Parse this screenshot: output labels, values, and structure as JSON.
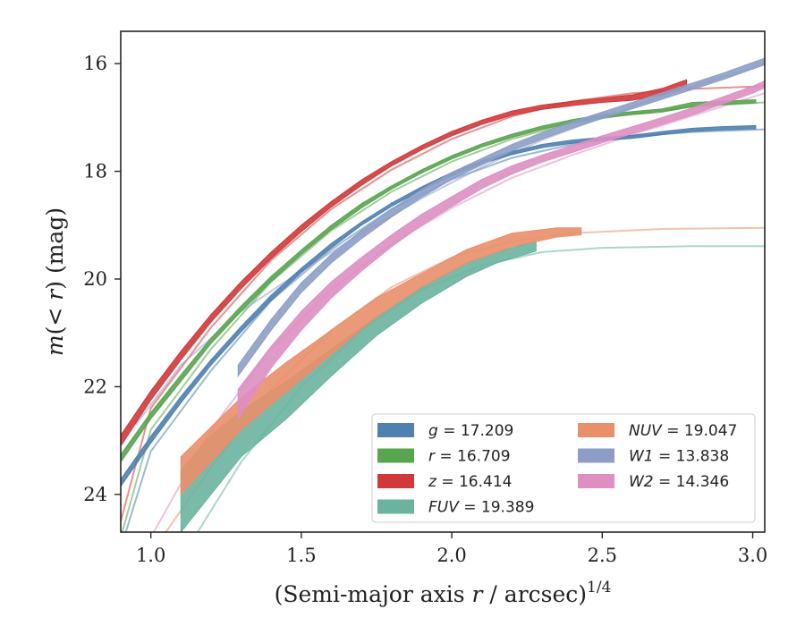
{
  "chart_data": {
    "type": "line",
    "title": "",
    "xlabel": "(Semi-major axis r / arcsec)",
    "xlabel_exponent": "1/4",
    "ylabel": "m(< r) (mag)",
    "xlim": [
      0.9,
      3.04
    ],
    "ylim": [
      24.7,
      15.4
    ],
    "y_inverted": true,
    "xticks": [
      1.0,
      1.5,
      2.0,
      2.5,
      3.0
    ],
    "xtick_labels": [
      "1.0",
      "1.5",
      "2.0",
      "2.5",
      "3.0"
    ],
    "yticks": [
      16,
      18,
      20,
      22,
      24
    ],
    "ytick_labels": [
      "16",
      "18",
      "20",
      "22",
      "24"
    ],
    "grid": false,
    "legend_position": "lower-right",
    "series": [
      {
        "name": "g = 17.209",
        "label_var": "g",
        "label_value": "17.209",
        "color": "#4f80b0",
        "band": [
          [
            0.9,
            23.85,
            23.72
          ],
          [
            1.0,
            23.05,
            22.92
          ],
          [
            1.1,
            22.3,
            22.18
          ],
          [
            1.2,
            21.6,
            21.5
          ],
          [
            1.3,
            20.98,
            20.88
          ],
          [
            1.4,
            20.4,
            20.3
          ],
          [
            1.5,
            19.88,
            19.8
          ],
          [
            1.6,
            19.42,
            19.34
          ],
          [
            1.7,
            19.0,
            18.94
          ],
          [
            1.8,
            18.65,
            18.59
          ],
          [
            1.9,
            18.35,
            18.29
          ],
          [
            2.0,
            18.08,
            18.02
          ],
          [
            2.1,
            17.86,
            17.8
          ],
          [
            2.2,
            17.69,
            17.63
          ],
          [
            2.3,
            17.56,
            17.5
          ],
          [
            2.4,
            17.48,
            17.42
          ],
          [
            2.5,
            17.43,
            17.37
          ],
          [
            2.6,
            17.39,
            17.33
          ],
          [
            2.7,
            17.32,
            17.26
          ],
          [
            2.8,
            17.26,
            17.2
          ],
          [
            2.9,
            17.23,
            17.17
          ],
          [
            3.01,
            17.21,
            17.15
          ]
        ],
        "model": [
          [
            0.9,
            25.0
          ],
          [
            1.0,
            23.2
          ],
          [
            1.2,
            21.7
          ],
          [
            1.4,
            20.4
          ],
          [
            1.6,
            19.45
          ],
          [
            1.8,
            18.7
          ],
          [
            2.0,
            18.15
          ],
          [
            2.2,
            17.75
          ],
          [
            2.4,
            17.5
          ],
          [
            2.6,
            17.35
          ],
          [
            2.8,
            17.27
          ],
          [
            3.04,
            17.22
          ]
        ]
      },
      {
        "name": "r = 16.709",
        "label_var": "r",
        "label_value": "16.709",
        "color": "#59a44f",
        "band": [
          [
            0.9,
            23.4,
            23.26
          ],
          [
            1.0,
            22.6,
            22.48
          ],
          [
            1.1,
            21.9,
            21.78
          ],
          [
            1.2,
            21.2,
            21.1
          ],
          [
            1.3,
            20.6,
            20.5
          ],
          [
            1.4,
            20.05,
            19.95
          ],
          [
            1.5,
            19.54,
            19.46
          ],
          [
            1.6,
            19.08,
            19.0
          ],
          [
            1.7,
            18.68,
            18.6
          ],
          [
            1.8,
            18.33,
            18.27
          ],
          [
            1.9,
            18.03,
            17.97
          ],
          [
            2.0,
            17.77,
            17.71
          ],
          [
            2.1,
            17.55,
            17.49
          ],
          [
            2.2,
            17.37,
            17.31
          ],
          [
            2.3,
            17.22,
            17.16
          ],
          [
            2.4,
            17.1,
            17.04
          ],
          [
            2.5,
            17.01,
            16.95
          ],
          [
            2.6,
            16.95,
            16.89
          ],
          [
            2.7,
            16.9,
            16.84
          ],
          [
            2.8,
            16.8,
            16.72
          ],
          [
            2.9,
            16.76,
            16.7
          ],
          [
            3.01,
            16.73,
            16.67
          ]
        ],
        "model": [
          [
            0.9,
            24.8
          ],
          [
            1.0,
            22.8
          ],
          [
            1.2,
            21.3
          ],
          [
            1.4,
            20.05
          ],
          [
            1.6,
            19.1
          ],
          [
            1.8,
            18.38
          ],
          [
            2.0,
            17.82
          ],
          [
            2.2,
            17.4
          ],
          [
            2.4,
            17.1
          ],
          [
            2.6,
            16.93
          ],
          [
            2.8,
            16.8
          ],
          [
            3.04,
            16.72
          ]
        ]
      },
      {
        "name": "z = 16.414",
        "label_var": "z",
        "label_value": "16.414",
        "color": "#d0383a",
        "band": [
          [
            0.9,
            23.1,
            22.9
          ],
          [
            1.0,
            22.25,
            22.08
          ],
          [
            1.1,
            21.5,
            21.34
          ],
          [
            1.2,
            20.8,
            20.66
          ],
          [
            1.3,
            20.18,
            20.05
          ],
          [
            1.4,
            19.62,
            19.5
          ],
          [
            1.5,
            19.12,
            19.0
          ],
          [
            1.6,
            18.66,
            18.56
          ],
          [
            1.7,
            18.26,
            18.16
          ],
          [
            1.8,
            17.9,
            17.82
          ],
          [
            1.9,
            17.6,
            17.52
          ],
          [
            2.0,
            17.34,
            17.26
          ],
          [
            2.1,
            17.13,
            17.05
          ],
          [
            2.2,
            16.96,
            16.88
          ],
          [
            2.3,
            16.85,
            16.77
          ],
          [
            2.4,
            16.78,
            16.7
          ],
          [
            2.5,
            16.72,
            16.64
          ],
          [
            2.6,
            16.68,
            16.58
          ],
          [
            2.7,
            16.58,
            16.46
          ],
          [
            2.78,
            16.42,
            16.3
          ]
        ],
        "model": [
          [
            0.9,
            24.5
          ],
          [
            1.0,
            22.4
          ],
          [
            1.2,
            20.9
          ],
          [
            1.4,
            19.65
          ],
          [
            1.6,
            18.7
          ],
          [
            1.8,
            17.97
          ],
          [
            2.0,
            17.4
          ],
          [
            2.2,
            16.98
          ],
          [
            2.4,
            16.7
          ],
          [
            2.6,
            16.55
          ],
          [
            2.8,
            16.47
          ],
          [
            3.04,
            16.42
          ]
        ]
      },
      {
        "name": "FUV = 19.389",
        "label_var": "FUV",
        "label_value": "19.389",
        "color": "#6bb39f",
        "band": [
          [
            1.1,
            24.7,
            23.55
          ],
          [
            1.2,
            24.0,
            22.9
          ],
          [
            1.3,
            23.3,
            22.45
          ],
          [
            1.45,
            22.6,
            21.9
          ],
          [
            1.6,
            21.8,
            21.3
          ],
          [
            1.75,
            21.05,
            20.7
          ],
          [
            1.9,
            20.45,
            20.15
          ],
          [
            2.05,
            19.95,
            19.7
          ],
          [
            2.15,
            19.7,
            19.5
          ],
          [
            2.28,
            19.48,
            19.3
          ]
        ],
        "model": [
          [
            1.1,
            25.2
          ],
          [
            1.3,
            23.4
          ],
          [
            1.5,
            22.0
          ],
          [
            1.7,
            20.95
          ],
          [
            1.9,
            20.2
          ],
          [
            2.1,
            19.75
          ],
          [
            2.3,
            19.5
          ],
          [
            2.5,
            19.42
          ],
          [
            2.8,
            19.39
          ],
          [
            3.04,
            19.39
          ]
        ]
      },
      {
        "name": "NUV = 19.047",
        "label_var": "NUV",
        "label_value": "19.047",
        "color": "#e98f6a",
        "band": [
          [
            1.1,
            24.0,
            23.3
          ],
          [
            1.2,
            23.4,
            22.75
          ],
          [
            1.3,
            22.8,
            22.2
          ],
          [
            1.45,
            22.1,
            21.55
          ],
          [
            1.6,
            21.4,
            20.95
          ],
          [
            1.75,
            20.7,
            20.35
          ],
          [
            1.9,
            20.15,
            19.9
          ],
          [
            2.05,
            19.7,
            19.45
          ],
          [
            2.2,
            19.4,
            19.15
          ],
          [
            2.35,
            19.22,
            19.05
          ],
          [
            2.43,
            19.18,
            19.05
          ]
        ],
        "model": [
          [
            1.0,
            25.1
          ],
          [
            1.2,
            23.5
          ],
          [
            1.4,
            22.05
          ],
          [
            1.6,
            20.95
          ],
          [
            1.8,
            20.15
          ],
          [
            2.0,
            19.6
          ],
          [
            2.2,
            19.3
          ],
          [
            2.4,
            19.15
          ],
          [
            2.7,
            19.07
          ],
          [
            3.04,
            19.05
          ]
        ]
      },
      {
        "name": "W1 = 13.838",
        "label_var": "W1",
        "label_value": "13.838",
        "color": "#8d9ec6",
        "band": [
          [
            1.29,
            21.8,
            21.6
          ],
          [
            1.4,
            20.95,
            20.75
          ],
          [
            1.5,
            20.25,
            20.07
          ],
          [
            1.6,
            19.7,
            19.54
          ],
          [
            1.7,
            19.25,
            19.1
          ],
          [
            1.8,
            18.85,
            18.7
          ],
          [
            1.9,
            18.48,
            18.34
          ],
          [
            2.0,
            18.15,
            18.02
          ],
          [
            2.1,
            17.88,
            17.76
          ],
          [
            2.2,
            17.62,
            17.5
          ],
          [
            2.3,
            17.4,
            17.28
          ],
          [
            2.4,
            17.2,
            17.08
          ],
          [
            2.5,
            17.02,
            16.9
          ],
          [
            2.6,
            16.84,
            16.72
          ],
          [
            2.7,
            16.66,
            16.54
          ],
          [
            2.8,
            16.48,
            16.36
          ],
          [
            2.9,
            16.3,
            16.18
          ],
          [
            3.0,
            16.1,
            15.98
          ],
          [
            3.04,
            16.02,
            15.9
          ]
        ],
        "model": [
          [
            0.95,
            22.7
          ],
          [
            1.1,
            21.6
          ],
          [
            1.3,
            20.6
          ],
          [
            1.5,
            19.85
          ],
          [
            1.7,
            19.15
          ],
          [
            1.9,
            18.5
          ],
          [
            2.1,
            17.92
          ],
          [
            2.3,
            17.42
          ],
          [
            2.5,
            17.0
          ],
          [
            2.7,
            16.6
          ],
          [
            2.9,
            16.25
          ],
          [
            3.04,
            16.0
          ]
        ]
      },
      {
        "name": "W2 = 14.346",
        "label_var": "W2",
        "label_value": "14.346",
        "color": "#dd8fc2",
        "band": [
          [
            1.29,
            22.6,
            22.05
          ],
          [
            1.4,
            21.65,
            21.25
          ],
          [
            1.5,
            20.95,
            20.6
          ],
          [
            1.6,
            20.35,
            20.05
          ],
          [
            1.7,
            19.85,
            19.6
          ],
          [
            1.8,
            19.4,
            19.18
          ],
          [
            1.9,
            19.0,
            18.8
          ],
          [
            2.0,
            18.65,
            18.47
          ],
          [
            2.1,
            18.32,
            18.15
          ],
          [
            2.2,
            18.05,
            17.9
          ],
          [
            2.3,
            17.83,
            17.7
          ],
          [
            2.4,
            17.65,
            17.52
          ],
          [
            2.5,
            17.47,
            17.34
          ],
          [
            2.6,
            17.3,
            17.17
          ],
          [
            2.7,
            17.13,
            17.0
          ],
          [
            2.8,
            16.95,
            16.82
          ],
          [
            2.9,
            16.75,
            16.62
          ],
          [
            3.0,
            16.55,
            16.42
          ],
          [
            3.04,
            16.45,
            16.32
          ]
        ],
        "model": [
          [
            1.0,
            24.8
          ],
          [
            1.2,
            22.8
          ],
          [
            1.4,
            21.3
          ],
          [
            1.6,
            20.2
          ],
          [
            1.8,
            19.35
          ],
          [
            2.0,
            18.68
          ],
          [
            2.2,
            18.12
          ],
          [
            2.4,
            17.7
          ],
          [
            2.6,
            17.32
          ],
          [
            2.8,
            16.97
          ],
          [
            3.04,
            16.55
          ]
        ]
      }
    ],
    "legend_columns": [
      [
        "g = 17.209",
        "r = 16.709",
        "z = 16.414",
        "FUV = 19.389"
      ],
      [
        "NUV = 19.047",
        "W1 = 13.838",
        "W2 = 14.346"
      ]
    ]
  }
}
